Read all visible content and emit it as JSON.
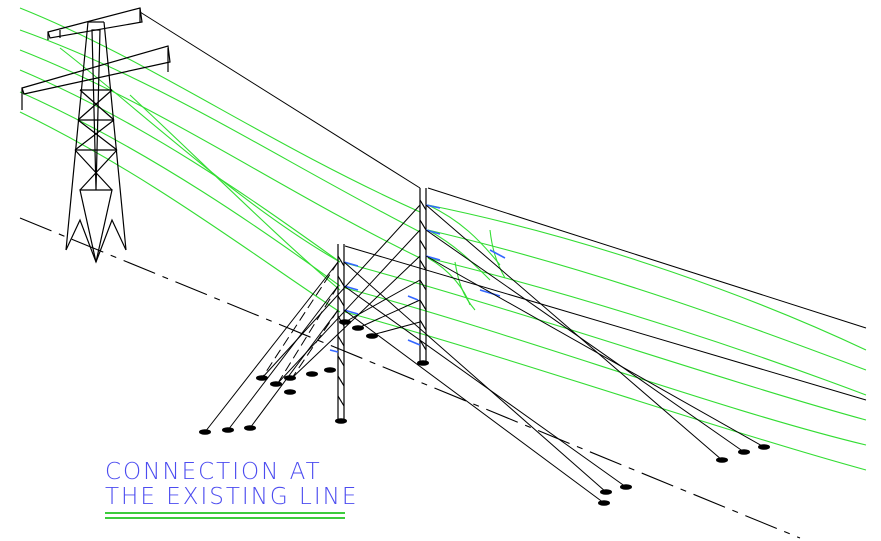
{
  "caption": {
    "line1": "CONNECTION AT",
    "line2": "THE EXISTING LINE",
    "text_color": "#4c4cf0",
    "underline_color": "#3ccc3c"
  },
  "colors": {
    "structure": "#000000",
    "conductor": "#33dd33",
    "insulator": "#3366ff",
    "ground_line": "#000000",
    "background": "#ffffff"
  }
}
